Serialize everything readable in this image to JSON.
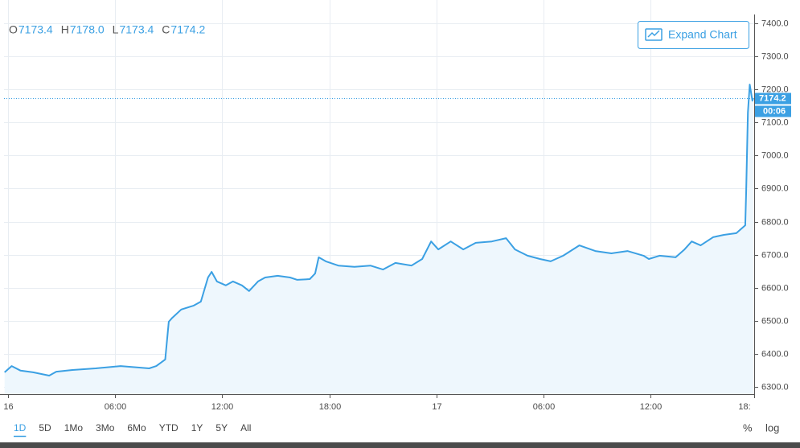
{
  "header": {
    "legend": [
      {
        "key": "O",
        "value": "7173.4"
      },
      {
        "key": "H",
        "value": "7178.0"
      },
      {
        "key": "L",
        "value": "7173.4"
      },
      {
        "key": "C",
        "value": "7174.2"
      }
    ],
    "button": "Expand Chart"
  },
  "chart_data": {
    "type": "line",
    "color": "#3ba0e3",
    "area_color": "#eef7fd",
    "grid": true,
    "x": [
      -0.2,
      0.2,
      0.7,
      1.4,
      2.3,
      2.7,
      3.6,
      4.9,
      6.3,
      7.9,
      8.3,
      8.8,
      9.0,
      9.2,
      9.7,
      10.4,
      10.8,
      11.2,
      11.4,
      11.7,
      12.2,
      12.6,
      13.1,
      13.5,
      14.0,
      14.4,
      15.1,
      15.8,
      16.2,
      16.9,
      17.2,
      17.4,
      17.8,
      18.5,
      19.4,
      20.3,
      21.0,
      21.7,
      22.6,
      23.2,
      23.7,
      24.1,
      24.8,
      25.5,
      26.2,
      27.1,
      27.9,
      28.4,
      29.1,
      29.8,
      30.4,
      31.1,
      32.0,
      32.9,
      33.8,
      34.7,
      35.6,
      35.9,
      36.5,
      37.4,
      37.9,
      38.3,
      38.8,
      39.5,
      40.1,
      40.8,
      41.3,
      41.35,
      41.45,
      41.55,
      41.7,
      41.75
    ],
    "values": [
      6344,
      6363,
      6349,
      6344,
      6334,
      6346,
      6351,
      6356,
      6363,
      6356,
      6363,
      6383,
      6497,
      6509,
      6534,
      6546,
      6558,
      6631,
      6648,
      6619,
      6607,
      6619,
      6607,
      6590,
      6619,
      6631,
      6636,
      6631,
      6624,
      6626,
      6643,
      6692,
      6680,
      6667,
      6663,
      6667,
      6655,
      6675,
      6667,
      6687,
      6740,
      6716,
      6740,
      6716,
      6736,
      6740,
      6750,
      6716,
      6697,
      6687,
      6680,
      6697,
      6728,
      6711,
      6704,
      6711,
      6697,
      6687,
      6697,
      6692,
      6716,
      6740,
      6728,
      6753,
      6760,
      6765,
      6789,
      6886,
      7130,
      7215,
      7166,
      7174.2
    ],
    "last_price": 7174.2,
    "countdown": "00:06",
    "xlim": [
      -0.23,
      41.8
    ],
    "ylim": [
      6278,
      7427
    ],
    "xticks": [
      {
        "value": 0,
        "label": "16"
      },
      {
        "value": 6,
        "label": "06:00"
      },
      {
        "value": 12,
        "label": "12:00"
      },
      {
        "value": 18,
        "label": "18:00"
      },
      {
        "value": 24,
        "label": "17"
      },
      {
        "value": 30,
        "label": "06:00"
      },
      {
        "value": 36,
        "label": "12:00"
      },
      {
        "value": 42,
        "label": "18:"
      }
    ],
    "yticks": [
      {
        "value": 6300,
        "label": "6300.0"
      },
      {
        "value": 6400,
        "label": "6400.0"
      },
      {
        "value": 6500,
        "label": "6500.0"
      },
      {
        "value": 6600,
        "label": "6600.0"
      },
      {
        "value": 6700,
        "label": "6700.0"
      },
      {
        "value": 6800,
        "label": "6800.0"
      },
      {
        "value": 6900,
        "label": "6900.0"
      },
      {
        "value": 7000,
        "label": "7000.0"
      },
      {
        "value": 7100,
        "label": "7100.0"
      },
      {
        "value": 7200,
        "label": "7200.0"
      },
      {
        "value": 7300,
        "label": "7300.0"
      },
      {
        "value": 7400,
        "label": "7400.0"
      }
    ]
  },
  "toolbar": {
    "ranges": [
      "1D",
      "5D",
      "1Mo",
      "3Mo",
      "6Mo",
      "YTD",
      "1Y",
      "5Y",
      "All"
    ],
    "selected": 0,
    "right": [
      "%",
      "log"
    ]
  }
}
